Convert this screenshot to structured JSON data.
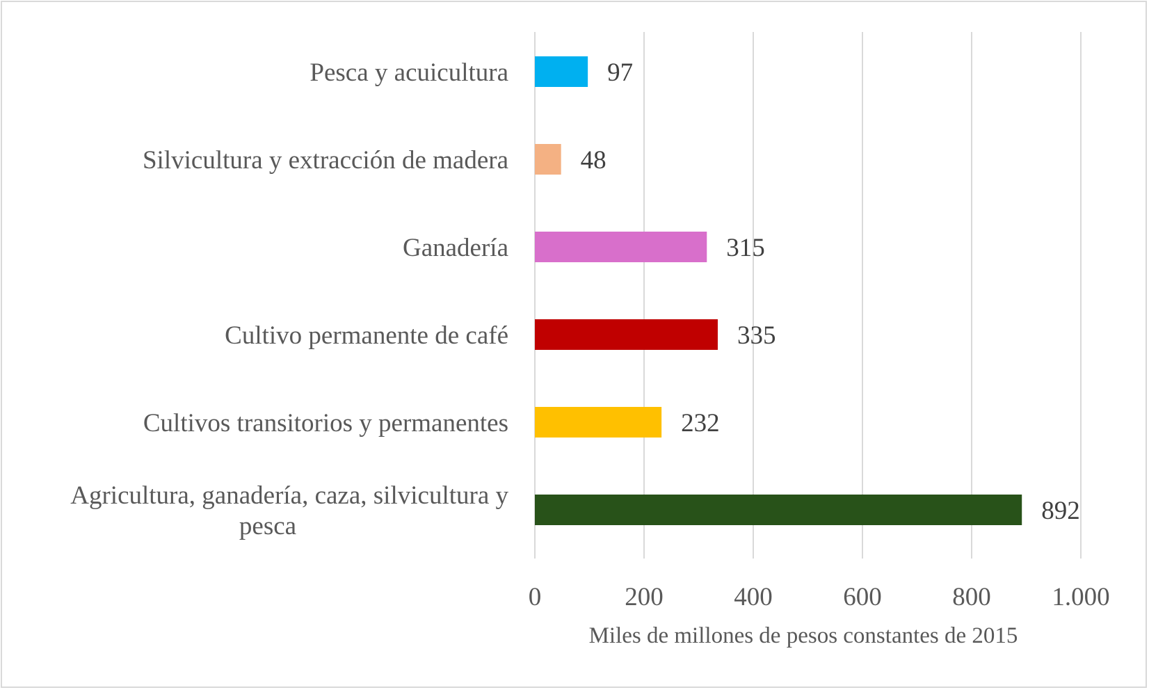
{
  "chart_data": {
    "type": "bar",
    "orientation": "horizontal",
    "categories": [
      "Pesca y acuicultura",
      "Silvicultura y extracción de madera",
      "Ganadería",
      "Cultivo permanente de café",
      "Cultivos transitorios y permanentes",
      "Agricultura, ganadería, caza, silvicultura y pesca"
    ],
    "category_lines": [
      [
        "Pesca y acuicultura"
      ],
      [
        "Silvicultura y extracción de madera"
      ],
      [
        "Ganadería"
      ],
      [
        "Cultivo permanente de café"
      ],
      [
        "Cultivos transitorios y permanentes"
      ],
      [
        "Agricultura, ganadería, caza, silvicultura y",
        "pesca"
      ]
    ],
    "values": [
      97,
      48,
      315,
      335,
      232,
      892
    ],
    "data_labels": [
      "97",
      "48",
      "315",
      "335",
      "232",
      "892"
    ],
    "colors": [
      "#00b0f0",
      "#f4b183",
      "#d86fcb",
      "#c00000",
      "#ffc000",
      "#285219"
    ],
    "xlim": [
      0,
      1000
    ],
    "xticks": [
      0,
      200,
      400,
      600,
      800,
      1000
    ],
    "xtick_labels": [
      "0",
      "200",
      "400",
      "600",
      "800",
      "1.000"
    ],
    "xlabel": "Miles de millones de pesos constantes de 2015",
    "ylabel": "",
    "title": "",
    "grid": "vertical",
    "legend": "none"
  }
}
